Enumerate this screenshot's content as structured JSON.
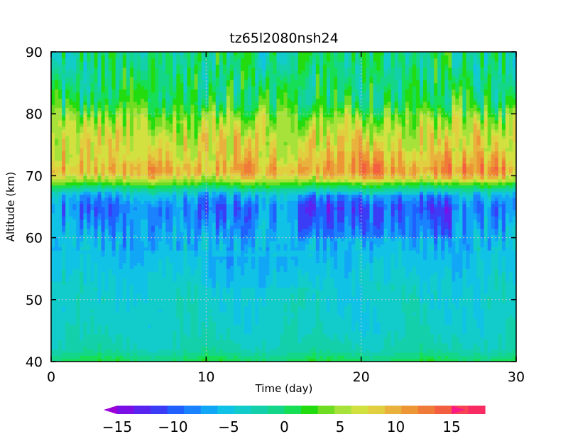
{
  "chart_data": {
    "type": "heatmap",
    "title": "tz65l2080nsh24",
    "xlabel": "Time (day)",
    "ylabel": "Altitude (km)",
    "xlim": [
      0,
      30
    ],
    "ylim": [
      40,
      90
    ],
    "x_ticks": [
      0,
      10,
      20,
      30
    ],
    "y_ticks": [
      40,
      50,
      60,
      70,
      80,
      90
    ],
    "x_tick_labels": [
      "0",
      "10",
      "20",
      "30"
    ],
    "y_tick_labels": [
      "40",
      "50",
      "60",
      "70",
      "80",
      "90"
    ],
    "grid": true,
    "colorbar": {
      "min": -15,
      "max": 15,
      "step": 1.5,
      "ticks": [
        -15,
        -10,
        -5,
        0,
        5,
        10,
        15
      ],
      "tick_labels": [
        "−15",
        "−10",
        "−5",
        "0",
        "5",
        "10",
        "15"
      ],
      "extend": "both",
      "colors": [
        "#9b00d9",
        "#7a10e6",
        "#5a24f0",
        "#3a3cf6",
        "#2060ff",
        "#1a82ff",
        "#12a6f6",
        "#10c2e6",
        "#12cccb",
        "#14d0aa",
        "#14d688",
        "#16de55",
        "#22dc10",
        "#6edc20",
        "#a6e23a",
        "#d2e040",
        "#e2cf40",
        "#e8b23c",
        "#ec9636",
        "#f07a38",
        "#f45e40",
        "#f64452",
        "#f82c62",
        "#fa1a86"
      ]
    },
    "field_description": {
      "altitude_levels_km": [
        40,
        42,
        45,
        48,
        52,
        56,
        60,
        63,
        65,
        67,
        68,
        69,
        70,
        71,
        73,
        76,
        79,
        82,
        85,
        88,
        90
      ],
      "mean_values": [
        1,
        -2.5,
        -3.5,
        -4,
        -4,
        -5,
        -6,
        -8,
        -9,
        -6,
        -1,
        4,
        8,
        10,
        8,
        7.5,
        5,
        0.5,
        -0.5,
        -1,
        -0.5
      ]
    }
  }
}
